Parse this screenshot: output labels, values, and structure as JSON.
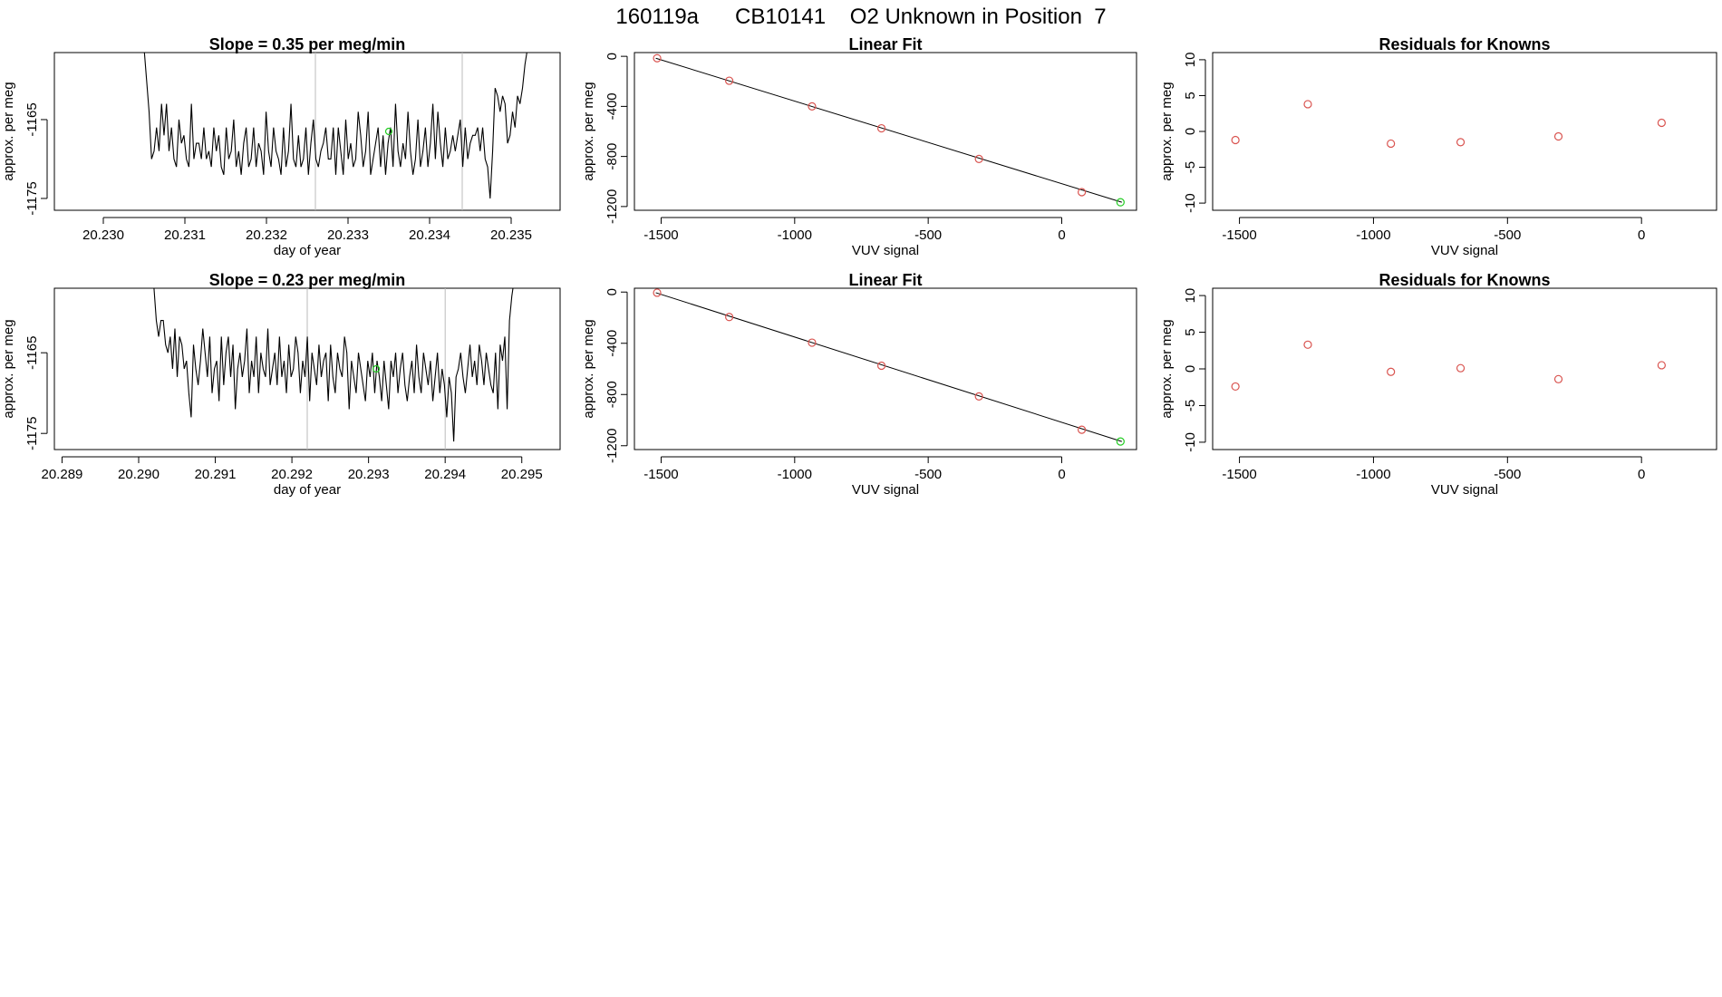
{
  "page_title": "160119a      CB10141    O2 Unknown in Position  7",
  "colors": {
    "line": "#000000",
    "known": "#d9534f",
    "unknown": "#22cc22",
    "vline": "#bbbbbb",
    "axis": "#000000"
  },
  "chart_data": [
    {
      "id": "ts1",
      "type": "line",
      "title": "Slope =  0.35  per meg/min",
      "xlabel": "day of year",
      "ylabel": "approx. per meg",
      "xlim": [
        20.2294,
        20.2356
      ],
      "ylim": [
        -1176.5,
        -1156.5
      ],
      "xticks": [
        20.23,
        20.231,
        20.232,
        20.233,
        20.234,
        20.235
      ],
      "xtick_labels": [
        "20.230",
        "20.231",
        "20.232",
        "20.233",
        "20.234",
        "20.235"
      ],
      "yticks": [
        -1175,
        -1165
      ],
      "ytick_labels": [
        "-1175",
        "-1165"
      ],
      "vlines": [
        20.2326,
        20.2344
      ],
      "unknown_point": {
        "x": 20.2335,
        "y": -1166.5
      },
      "series": [
        {
          "name": "trace",
          "x_start": 20.2305,
          "x_end": 20.2352,
          "values": [
            -1156,
            -1160,
            -1164,
            -1170,
            -1169,
            -1166,
            -1169,
            -1163,
            -1167,
            -1163,
            -1169,
            -1166,
            -1170,
            -1171,
            -1165,
            -1168,
            -1167,
            -1170,
            -1171,
            -1163,
            -1170,
            -1168,
            -1168,
            -1170,
            -1166,
            -1170,
            -1169,
            -1171,
            -1166,
            -1169,
            -1167,
            -1171,
            -1172,
            -1166,
            -1170,
            -1169,
            -1165,
            -1171,
            -1169,
            -1172,
            -1168,
            -1166,
            -1171,
            -1170,
            -1166,
            -1171,
            -1168,
            -1169,
            -1172,
            -1164,
            -1169,
            -1171,
            -1166,
            -1169,
            -1170,
            -1172,
            -1166,
            -1171,
            -1169,
            -1163,
            -1170,
            -1171,
            -1167,
            -1171,
            -1170,
            -1166,
            -1172,
            -1168,
            -1165,
            -1170,
            -1171,
            -1169,
            -1168,
            -1166,
            -1170,
            -1170,
            -1166,
            -1172,
            -1166,
            -1169,
            -1172,
            -1165,
            -1170,
            -1168,
            -1171,
            -1170,
            -1164,
            -1167,
            -1171,
            -1169,
            -1164,
            -1172,
            -1170,
            -1168,
            -1166,
            -1171,
            -1167,
            -1172,
            -1168,
            -1166,
            -1171,
            -1163,
            -1169,
            -1171,
            -1168,
            -1170,
            -1164,
            -1169,
            -1172,
            -1170,
            -1165,
            -1171,
            -1169,
            -1166,
            -1171,
            -1168,
            -1163,
            -1170,
            -1164,
            -1168,
            -1171,
            -1166,
            -1170,
            -1169,
            -1167,
            -1169,
            -1167,
            -1165,
            -1171,
            -1166,
            -1170,
            -1168,
            -1167,
            -1167,
            -1166,
            -1169,
            -1166,
            -1170,
            -1171,
            -1175,
            -1169,
            -1161,
            -1162,
            -1164,
            -1162,
            -1163,
            -1168,
            -1167,
            -1164,
            -1166,
            -1162,
            -1163,
            -1161,
            -1158,
            -1156
          ]
        }
      ]
    },
    {
      "id": "fit1",
      "type": "scatter",
      "title": "Linear Fit",
      "xlabel": "VUV signal",
      "ylabel": "approx. per meg",
      "xlim": [
        -1600,
        280
      ],
      "ylim": [
        -1230,
        30
      ],
      "xticks": [
        -1500,
        -1000,
        -500,
        0
      ],
      "xtick_labels": [
        "-1500",
        "-1000",
        "-500",
        "0"
      ],
      "yticks": [
        0,
        -400,
        -800,
        -1200
      ],
      "ytick_labels": [
        "0",
        "-400",
        "-800",
        "-1200"
      ],
      "fit_line": {
        "x": [
          -1520,
          225
        ],
        "y": [
          -15,
          -1166
        ]
      },
      "series": [
        {
          "name": "knowns",
          "x": [
            -1515,
            -1245,
            -935,
            -675,
            -310,
            75
          ],
          "y": [
            -15,
            -195,
            -400,
            -575,
            -820,
            -1085
          ]
        }
      ],
      "unknown_point": {
        "x": 220,
        "y": -1166
      }
    },
    {
      "id": "res1",
      "type": "scatter",
      "title": "Residuals for Knowns",
      "xlabel": "VUV signal",
      "ylabel": "approx. per meg",
      "xlim": [
        -1600,
        280
      ],
      "ylim": [
        -11,
        11
      ],
      "xticks": [
        -1500,
        -1000,
        -500,
        0
      ],
      "xtick_labels": [
        "-1500",
        "-1000",
        "-500",
        "0"
      ],
      "yticks": [
        10,
        5,
        0,
        -5,
        -10
      ],
      "ytick_labels": [
        "10",
        "5",
        "0",
        "-5",
        "-10"
      ],
      "series": [
        {
          "name": "residuals",
          "x": [
            -1515,
            -1245,
            -935,
            -675,
            -310,
            75
          ],
          "y": [
            -1.2,
            3.8,
            -1.7,
            -1.5,
            -0.7,
            1.2
          ]
        }
      ]
    },
    {
      "id": "ts2",
      "type": "line",
      "title": "Slope =  0.23  per meg/min",
      "xlabel": "day of year",
      "ylabel": "approx. per meg",
      "xlim": [
        20.2889,
        20.2955
      ],
      "ylim": [
        -1177,
        -1157
      ],
      "xticks": [
        20.289,
        20.29,
        20.291,
        20.292,
        20.293,
        20.294,
        20.295
      ],
      "xtick_labels": [
        "20.289",
        "20.290",
        "20.291",
        "20.292",
        "20.293",
        "20.294",
        "20.295"
      ],
      "yticks": [
        -1175,
        -1165
      ],
      "ytick_labels": [
        "-1175",
        "-1165"
      ],
      "vlines": [
        20.2922,
        20.294
      ],
      "unknown_point": {
        "x": 20.2931,
        "y": -1167
      },
      "series": [
        {
          "name": "trace",
          "x_start": 20.2902,
          "x_end": 20.2949,
          "values": [
            -1157,
            -1161,
            -1163,
            -1161,
            -1161,
            -1164,
            -1165,
            -1163,
            -1167,
            -1162,
            -1168,
            -1163,
            -1164,
            -1167,
            -1166,
            -1170,
            -1173,
            -1164,
            -1167,
            -1169,
            -1166,
            -1162,
            -1165,
            -1168,
            -1163,
            -1170,
            -1167,
            -1166,
            -1171,
            -1163,
            -1169,
            -1165,
            -1163,
            -1168,
            -1164,
            -1172,
            -1167,
            -1165,
            -1168,
            -1166,
            -1162,
            -1170,
            -1166,
            -1168,
            -1163,
            -1170,
            -1165,
            -1167,
            -1168,
            -1162,
            -1169,
            -1167,
            -1165,
            -1169,
            -1163,
            -1168,
            -1166,
            -1170,
            -1164,
            -1168,
            -1167,
            -1163,
            -1165,
            -1170,
            -1166,
            -1168,
            -1163,
            -1171,
            -1165,
            -1167,
            -1169,
            -1164,
            -1168,
            -1166,
            -1165,
            -1171,
            -1164,
            -1168,
            -1170,
            -1165,
            -1167,
            -1168,
            -1163,
            -1165,
            -1172,
            -1166,
            -1168,
            -1170,
            -1165,
            -1167,
            -1169,
            -1171,
            -1166,
            -1168,
            -1165,
            -1170,
            -1166,
            -1168,
            -1171,
            -1166,
            -1169,
            -1172,
            -1166,
            -1168,
            -1165,
            -1170,
            -1167,
            -1165,
            -1169,
            -1171,
            -1168,
            -1166,
            -1170,
            -1164,
            -1168,
            -1170,
            -1165,
            -1167,
            -1169,
            -1166,
            -1171,
            -1168,
            -1165,
            -1170,
            -1167,
            -1169,
            -1173,
            -1168,
            -1170,
            -1176,
            -1168,
            -1167,
            -1165,
            -1168,
            -1170,
            -1167,
            -1164,
            -1168,
            -1166,
            -1169,
            -1164,
            -1166,
            -1169,
            -1165,
            -1167,
            -1169,
            -1170,
            -1165,
            -1172,
            -1164,
            -1166,
            -1163,
            -1172,
            -1161,
            -1158,
            -1156
          ]
        }
      ]
    },
    {
      "id": "fit2",
      "type": "scatter",
      "title": "Linear Fit",
      "xlabel": "VUV signal",
      "ylabel": "approx. per meg",
      "xlim": [
        -1600,
        280
      ],
      "ylim": [
        -1230,
        30
      ],
      "xticks": [
        -1500,
        -1000,
        -500,
        0
      ],
      "xtick_labels": [
        "-1500",
        "-1000",
        "-500",
        "0"
      ],
      "yticks": [
        0,
        -400,
        -800,
        -1200
      ],
      "ytick_labels": [
        "0",
        "-400",
        "-800",
        "-1200"
      ],
      "fit_line": {
        "x": [
          -1520,
          225
        ],
        "y": [
          -5,
          -1167
        ]
      },
      "series": [
        {
          "name": "knowns",
          "x": [
            -1515,
            -1245,
            -935,
            -675,
            -310,
            75
          ],
          "y": [
            -5,
            -195,
            -395,
            -575,
            -815,
            -1075
          ]
        }
      ],
      "unknown_point": {
        "x": 220,
        "y": -1167
      }
    },
    {
      "id": "res2",
      "type": "scatter",
      "title": "Residuals for Knowns",
      "xlabel": "VUV signal",
      "ylabel": "approx. per meg",
      "xlim": [
        -1600,
        280
      ],
      "ylim": [
        -11,
        11
      ],
      "xticks": [
        -1500,
        -1000,
        -500,
        0
      ],
      "xtick_labels": [
        "-1500",
        "-1000",
        "-500",
        "0"
      ],
      "yticks": [
        10,
        5,
        0,
        -5,
        -10
      ],
      "ytick_labels": [
        "10",
        "5",
        "0",
        "-5",
        "-10"
      ],
      "series": [
        {
          "name": "residuals",
          "x": [
            -1515,
            -1245,
            -935,
            -675,
            -310,
            75
          ],
          "y": [
            -2.4,
            3.3,
            -0.4,
            0.1,
            -1.4,
            0.5
          ]
        }
      ]
    }
  ]
}
